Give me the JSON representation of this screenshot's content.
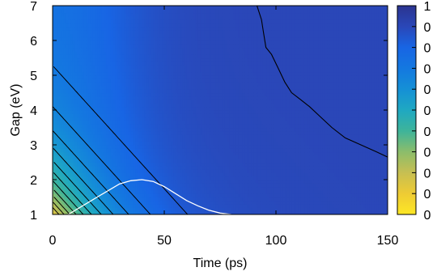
{
  "chart_data": {
    "type": "heatmap",
    "title": "",
    "xlabel": "Time (ps)",
    "ylabel": "Gap (eV)",
    "xlim": [
      0,
      150
    ],
    "ylim": [
      1,
      7
    ],
    "xticks": [
      "0",
      "50",
      "100",
      "150"
    ],
    "yticks": [
      "1",
      "2",
      "3",
      "4",
      "5",
      "6",
      "7"
    ],
    "grid": false,
    "colorbar": {
      "ticks": [
        "1",
        "0",
        "0",
        "0",
        "0",
        "0",
        "0",
        "0",
        "0",
        "0",
        "0"
      ],
      "colors": [
        "#fde725",
        "#eecb34",
        "#c7bf52",
        "#8cbd6b",
        "#3eb49a",
        "#1fa8c2",
        "#1590d6",
        "#1478e0",
        "#1865e4",
        "#2a47b8",
        "#2b3490"
      ]
    },
    "background_color": "#2e3590",
    "contour_levels": [
      0.05,
      0.1,
      0.15,
      0.2,
      0.25,
      0.3,
      0.35,
      0.4,
      0.45,
      0.5,
      0.55
    ],
    "contour_color": "#000000",
    "late_contour": [
      [
        91.5,
        7.0
      ],
      [
        93.5,
        6.6
      ],
      [
        94.5,
        6.2
      ],
      [
        95.5,
        5.8
      ],
      [
        98.0,
        5.6
      ],
      [
        101.0,
        5.2
      ],
      [
        104.0,
        4.8
      ],
      [
        107.0,
        4.5
      ],
      [
        111.0,
        4.3
      ],
      [
        115.0,
        4.1
      ],
      [
        120.0,
        3.8
      ],
      [
        125.0,
        3.5
      ],
      [
        131.0,
        3.2
      ],
      [
        138.0,
        3.0
      ],
      [
        145.0,
        2.8
      ],
      [
        150.0,
        2.65
      ]
    ],
    "white_curve": {
      "color": "#ffffff",
      "x": [
        7,
        20,
        30,
        35,
        40,
        45,
        50,
        55,
        60,
        65,
        70,
        75,
        80
      ],
      "y": [
        1.0,
        1.5,
        1.88,
        1.97,
        2.0,
        1.95,
        1.8,
        1.6,
        1.4,
        1.25,
        1.12,
        1.04,
        1.0
      ]
    }
  }
}
